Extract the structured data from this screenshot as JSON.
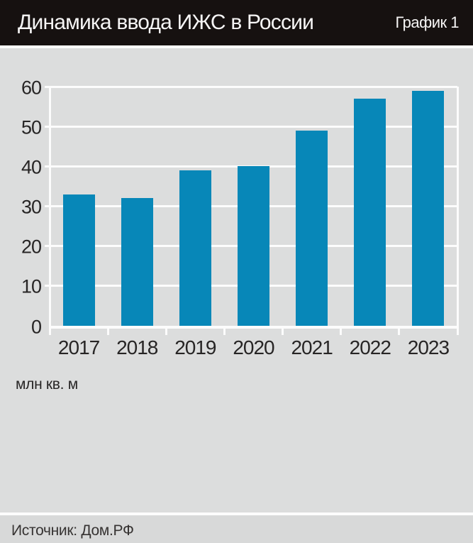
{
  "header": {
    "title": "Динамика ввода ИЖС в России",
    "tag": "График 1"
  },
  "chart_data": {
    "type": "bar",
    "title": "Динамика ввода ИЖС в России",
    "categories": [
      "2017",
      "2018",
      "2019",
      "2020",
      "2021",
      "2022",
      "2023"
    ],
    "values": [
      33,
      32,
      39,
      40,
      49,
      57,
      59
    ],
    "xlabel": "",
    "ylabel": "млн кв. м",
    "ylim": [
      0,
      60
    ],
    "yticks": [
      0,
      10,
      20,
      30,
      40,
      50,
      60
    ],
    "grid": true,
    "legend": "none",
    "bar_color": "#0787b8",
    "background_color": "#dcdddd",
    "gridline_color": "#fcfcfc"
  },
  "footer": {
    "source": "Источник: Дом.РФ"
  }
}
